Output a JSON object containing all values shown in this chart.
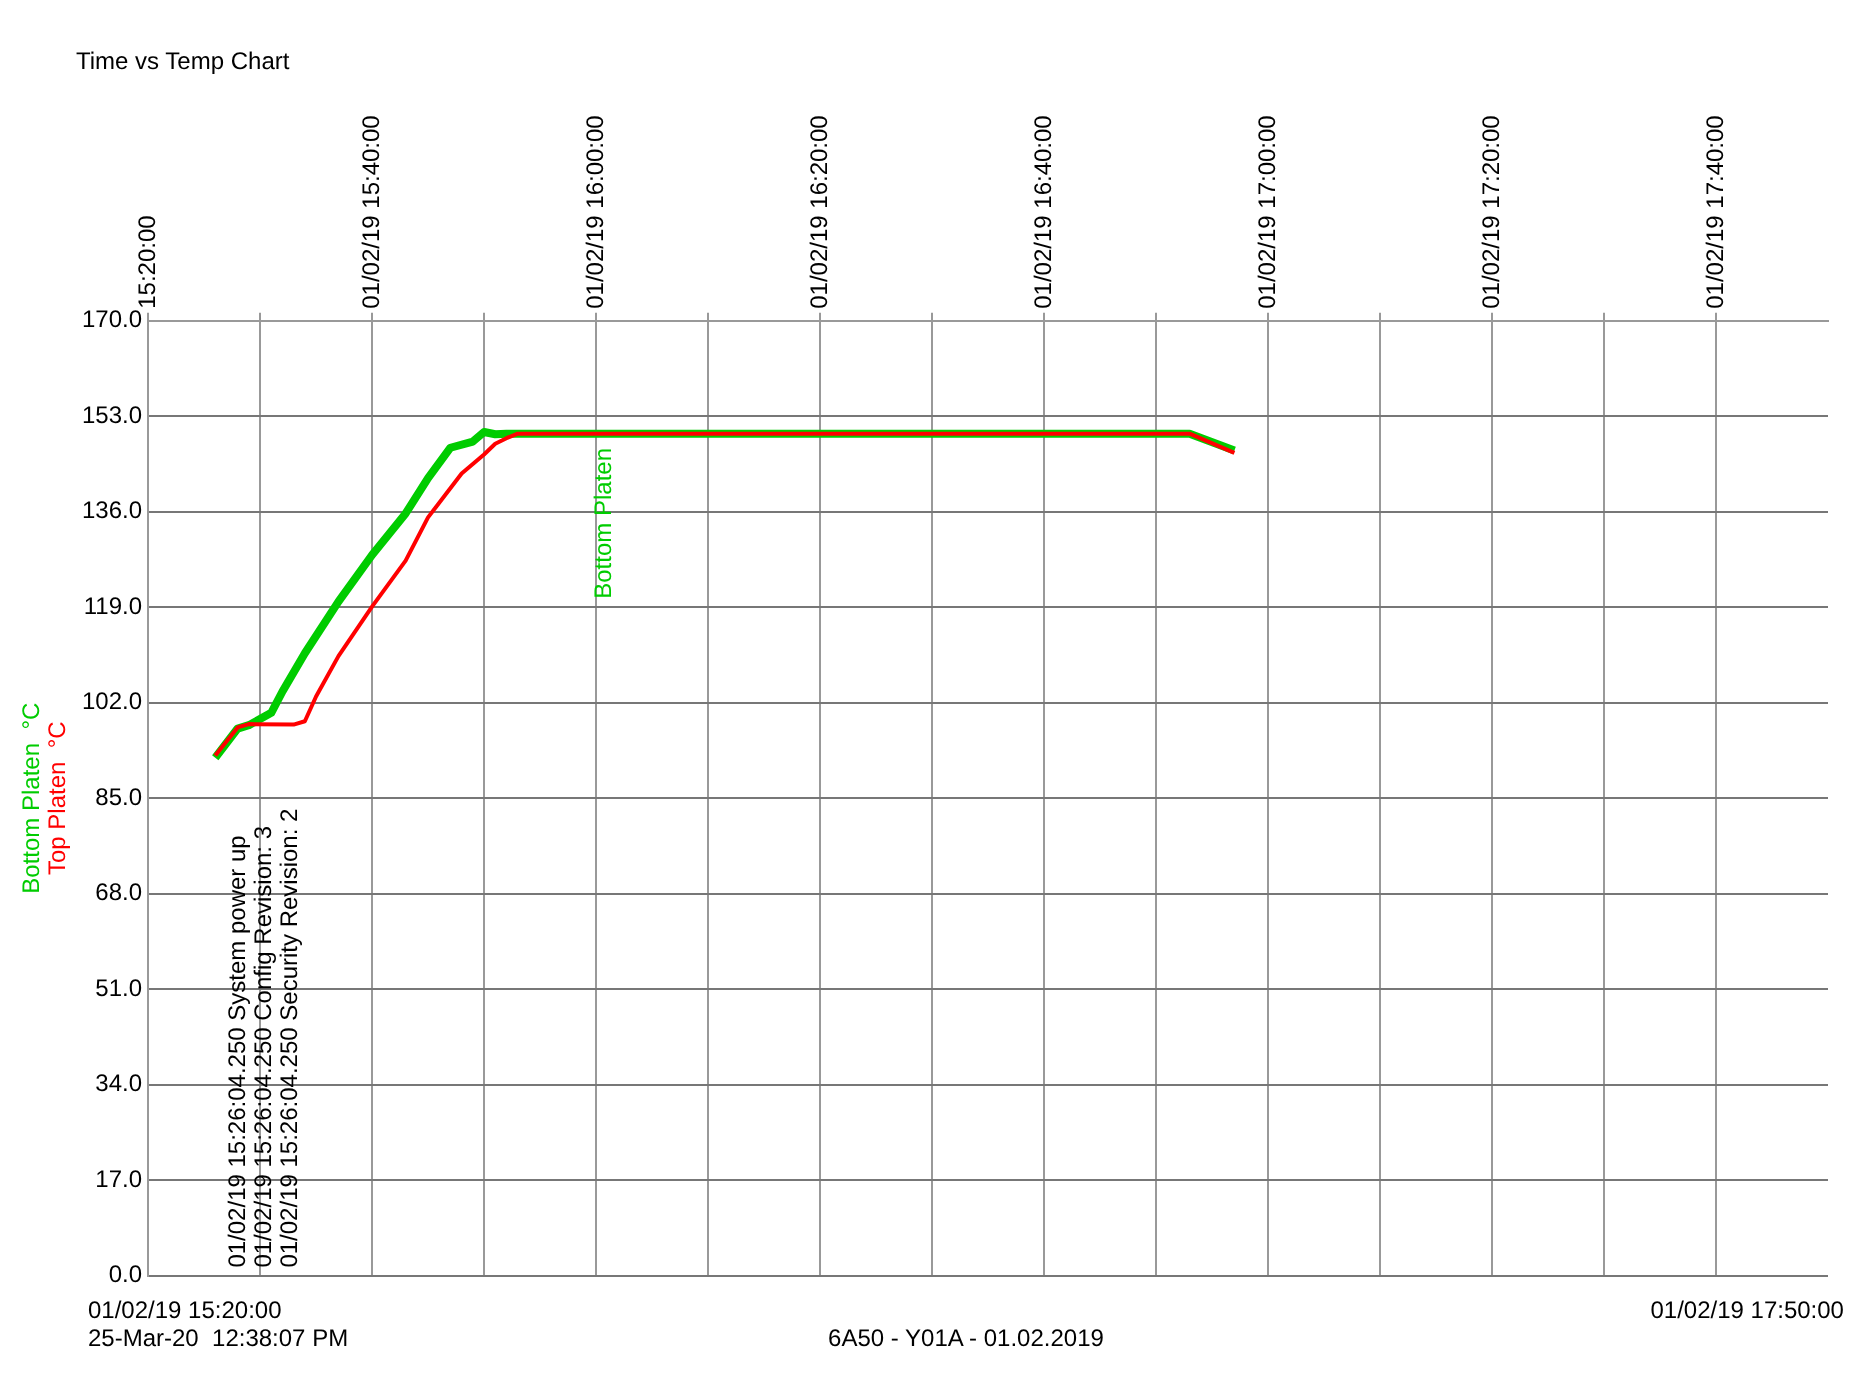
{
  "chart_data": {
    "type": "line",
    "title": "Time vs Temp Chart",
    "ylabel": "°C",
    "grid": true,
    "xlim": [
      "2019-02-01T15:20",
      "2019-02-01T17:50"
    ],
    "xticks": [
      {
        "value": "2019-02-01T15:20",
        "label": "15:20:00"
      },
      {
        "value": "2019-02-01T15:30",
        "label": null
      },
      {
        "value": "2019-02-01T15:40",
        "label": "01/02/19 15:40:00"
      },
      {
        "value": "2019-02-01T15:50",
        "label": null
      },
      {
        "value": "2019-02-01T16:00",
        "label": "01/02/19 16:00:00"
      },
      {
        "value": "2019-02-01T16:10",
        "label": null
      },
      {
        "value": "2019-02-01T16:20",
        "label": "01/02/19 16:20:00"
      },
      {
        "value": "2019-02-01T16:30",
        "label": null
      },
      {
        "value": "2019-02-01T16:40",
        "label": "01/02/19 16:40:00"
      },
      {
        "value": "2019-02-01T16:50",
        "label": null
      },
      {
        "value": "2019-02-01T17:00",
        "label": "01/02/19 17:00:00"
      },
      {
        "value": "2019-02-01T17:10",
        "label": null
      },
      {
        "value": "2019-02-01T17:20",
        "label": "01/02/19 17:20:00"
      },
      {
        "value": "2019-02-01T17:30",
        "label": null
      },
      {
        "value": "2019-02-01T17:40",
        "label": "01/02/19 17:40:00"
      }
    ],
    "ylim": [
      0,
      170
    ],
    "yticks": [
      {
        "value": 0,
        "label": "0.0"
      },
      {
        "value": 17,
        "label": "17.0"
      },
      {
        "value": 34,
        "label": "34.0"
      },
      {
        "value": 51,
        "label": "51.0"
      },
      {
        "value": 68,
        "label": "68.0"
      },
      {
        "value": 85,
        "label": "85.0"
      },
      {
        "value": 102,
        "label": "102.0"
      },
      {
        "value": 119,
        "label": "119.0"
      },
      {
        "value": 136,
        "label": "136.0"
      },
      {
        "value": 153,
        "label": "153.0"
      },
      {
        "value": 170,
        "label": "170.0"
      }
    ],
    "series": [
      {
        "name": "Top Platen",
        "color": "#ff0000",
        "x": [
          "2019-02-01T15:26",
          "2019-02-01T15:28",
          "2019-02-01T15:29",
          "2019-02-01T15:33",
          "2019-02-01T15:34",
          "2019-02-01T15:35",
          "2019-02-01T15:37",
          "2019-02-01T15:40",
          "2019-02-01T15:43",
          "2019-02-01T15:45",
          "2019-02-01T15:48",
          "2019-02-01T15:50",
          "2019-02-01T15:51",
          "2019-02-01T15:52",
          "2019-02-01T15:53",
          "2019-02-01T16:53",
          "2019-02-01T16:57"
        ],
        "values": [
          92.6,
          97.6,
          98.2,
          98.1,
          98.7,
          103.1,
          110.3,
          119.1,
          127.3,
          135.0,
          142.8,
          146.2,
          148.1,
          149.1,
          149.9,
          149.9,
          146.5
        ]
      },
      {
        "name": "Bottom Platen",
        "color": "#00cc00",
        "x": [
          "2019-02-01T15:26",
          "2019-02-01T15:28",
          "2019-02-01T15:29",
          "2019-02-01T15:31",
          "2019-02-01T15:32",
          "2019-02-01T15:34",
          "2019-02-01T15:37",
          "2019-02-01T15:40",
          "2019-02-01T15:43",
          "2019-02-01T15:45",
          "2019-02-01T15:47",
          "2019-02-01T15:49",
          "2019-02-01T15:50",
          "2019-02-01T15:51",
          "2019-02-01T15:52",
          "2019-02-01T16:53",
          "2019-02-01T16:57"
        ],
        "values": [
          92.2,
          97.4,
          98.0,
          100.2,
          104.0,
          110.8,
          120.0,
          128.3,
          135.7,
          142.0,
          147.4,
          148.5,
          150.2,
          149.8,
          149.9,
          149.9,
          146.9
        ]
      }
    ],
    "annotations": [
      "01/02/19 15:26:04.250 System power up",
      "01/02/19 15:26:04.250 Config Revision: 3",
      "01/02/19 15:26:04.250 Security Revision: 2",
      "01/02/19 15:20:00",
      "01/02/19 17:50:00",
      "25-Mar-20  12:38:07 PM",
      "6A50 - Y01A - 01.02.2019"
    ]
  }
}
